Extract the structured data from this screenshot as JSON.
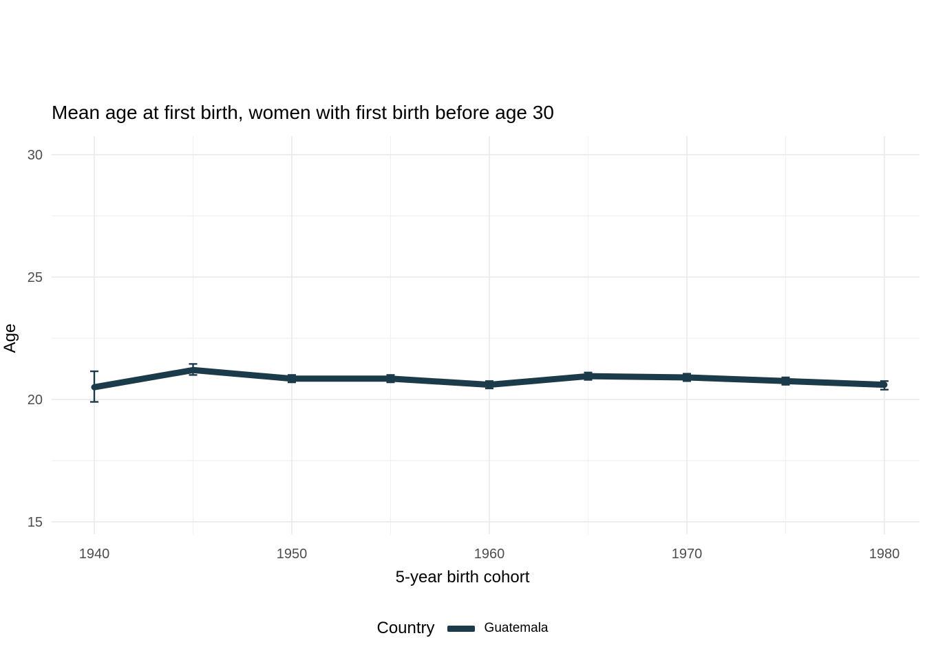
{
  "title": "Mean age at first birth, women with first birth before age 30",
  "x_axis": {
    "label": "5-year birth cohort",
    "major_ticks": [
      1940,
      1950,
      1960,
      1970,
      1980
    ],
    "minor_ticks": [
      1945,
      1955,
      1965,
      1975
    ]
  },
  "y_axis": {
    "label": "Age",
    "major_ticks": [
      15,
      20,
      25,
      30
    ],
    "minor_ticks": [
      17.5,
      22.5,
      27.5
    ]
  },
  "legend": {
    "title": "Country",
    "entries": [
      {
        "label": "Guatemala",
        "color": "#1b3a4a"
      }
    ]
  },
  "colors": {
    "series": "#1b3a4a",
    "grid_major": "#e9e9e9",
    "grid_minor": "#f0f0f0",
    "tick_label": "#4d4d4d",
    "background": "#ffffff"
  },
  "chart_data": {
    "type": "line",
    "title": "Mean age at first birth, women with first birth before age 30",
    "xlabel": "5-year birth cohort",
    "ylabel": "Age",
    "xlim": [
      1937.8,
      1982.2
    ],
    "ylim": [
      14.0,
      30.7
    ],
    "grid": true,
    "legend_position": "bottom",
    "error_bars": true,
    "series": [
      {
        "name": "Guatemala",
        "color": "#1b3a4a",
        "x": [
          1940,
          1945,
          1950,
          1955,
          1960,
          1965,
          1970,
          1975,
          1980
        ],
        "y": [
          20.5,
          21.2,
          20.85,
          20.85,
          20.6,
          20.95,
          20.9,
          20.75,
          20.6
        ],
        "ci_low": [
          19.9,
          21.0,
          20.7,
          20.7,
          20.45,
          20.8,
          20.75,
          20.6,
          20.4
        ],
        "ci_high": [
          21.15,
          21.45,
          21.0,
          21.0,
          20.75,
          21.1,
          21.05,
          20.9,
          20.75
        ]
      }
    ]
  }
}
